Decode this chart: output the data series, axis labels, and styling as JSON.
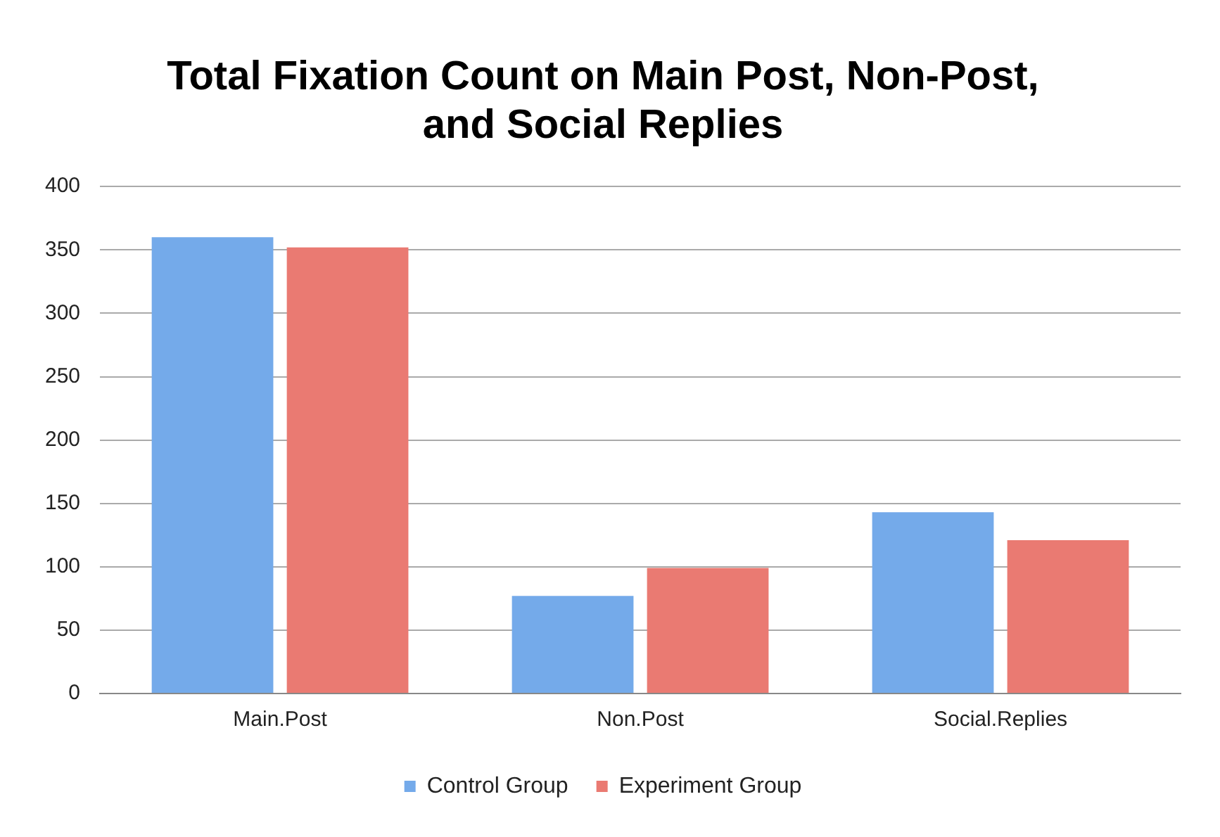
{
  "chart_data": {
    "type": "bar",
    "title": "Total Fixation Count on Main Post, Non-Post, and Social Replies",
    "categories": [
      "Main.Post",
      "Non.Post",
      "Social.Replies"
    ],
    "series": [
      {
        "name": "Control Group",
        "color": "#74aaea",
        "values": [
          360,
          77,
          143
        ]
      },
      {
        "name": "Experiment Group",
        "color": "#ea7a72",
        "values": [
          352,
          99,
          121
        ]
      }
    ],
    "ylim": [
      0,
      400
    ],
    "yticks": [
      0,
      50,
      100,
      150,
      200,
      250,
      300,
      350,
      400
    ],
    "grid": "y",
    "legend": "bottom"
  }
}
